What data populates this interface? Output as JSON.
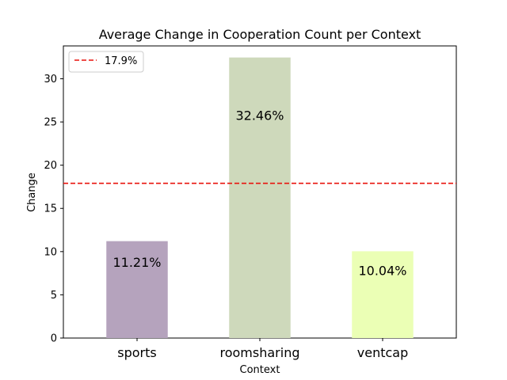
{
  "chart_data": {
    "type": "bar",
    "title": "Average Change in Cooperation Count per Context",
    "xlabel": "Context",
    "ylabel": "Change",
    "categories": [
      "sports",
      "roomsharing",
      "ventcap"
    ],
    "values": [
      11.21,
      32.46,
      10.04
    ],
    "value_labels": [
      "11.21%",
      "32.46%",
      "10.04%"
    ],
    "bar_colors": [
      "#b5a3bd",
      "#ced9bb",
      "#ebffb5"
    ],
    "ylim": [
      0,
      33.8
    ],
    "yticks": [
      0,
      5,
      10,
      15,
      20,
      25,
      30
    ],
    "reference_line": {
      "value": 17.9,
      "label": "17.9%",
      "color": "#e8120c",
      "style": "dashed"
    },
    "legend": {
      "placement": "top-left",
      "entries": [
        "17.9%"
      ]
    },
    "grid": false
  }
}
